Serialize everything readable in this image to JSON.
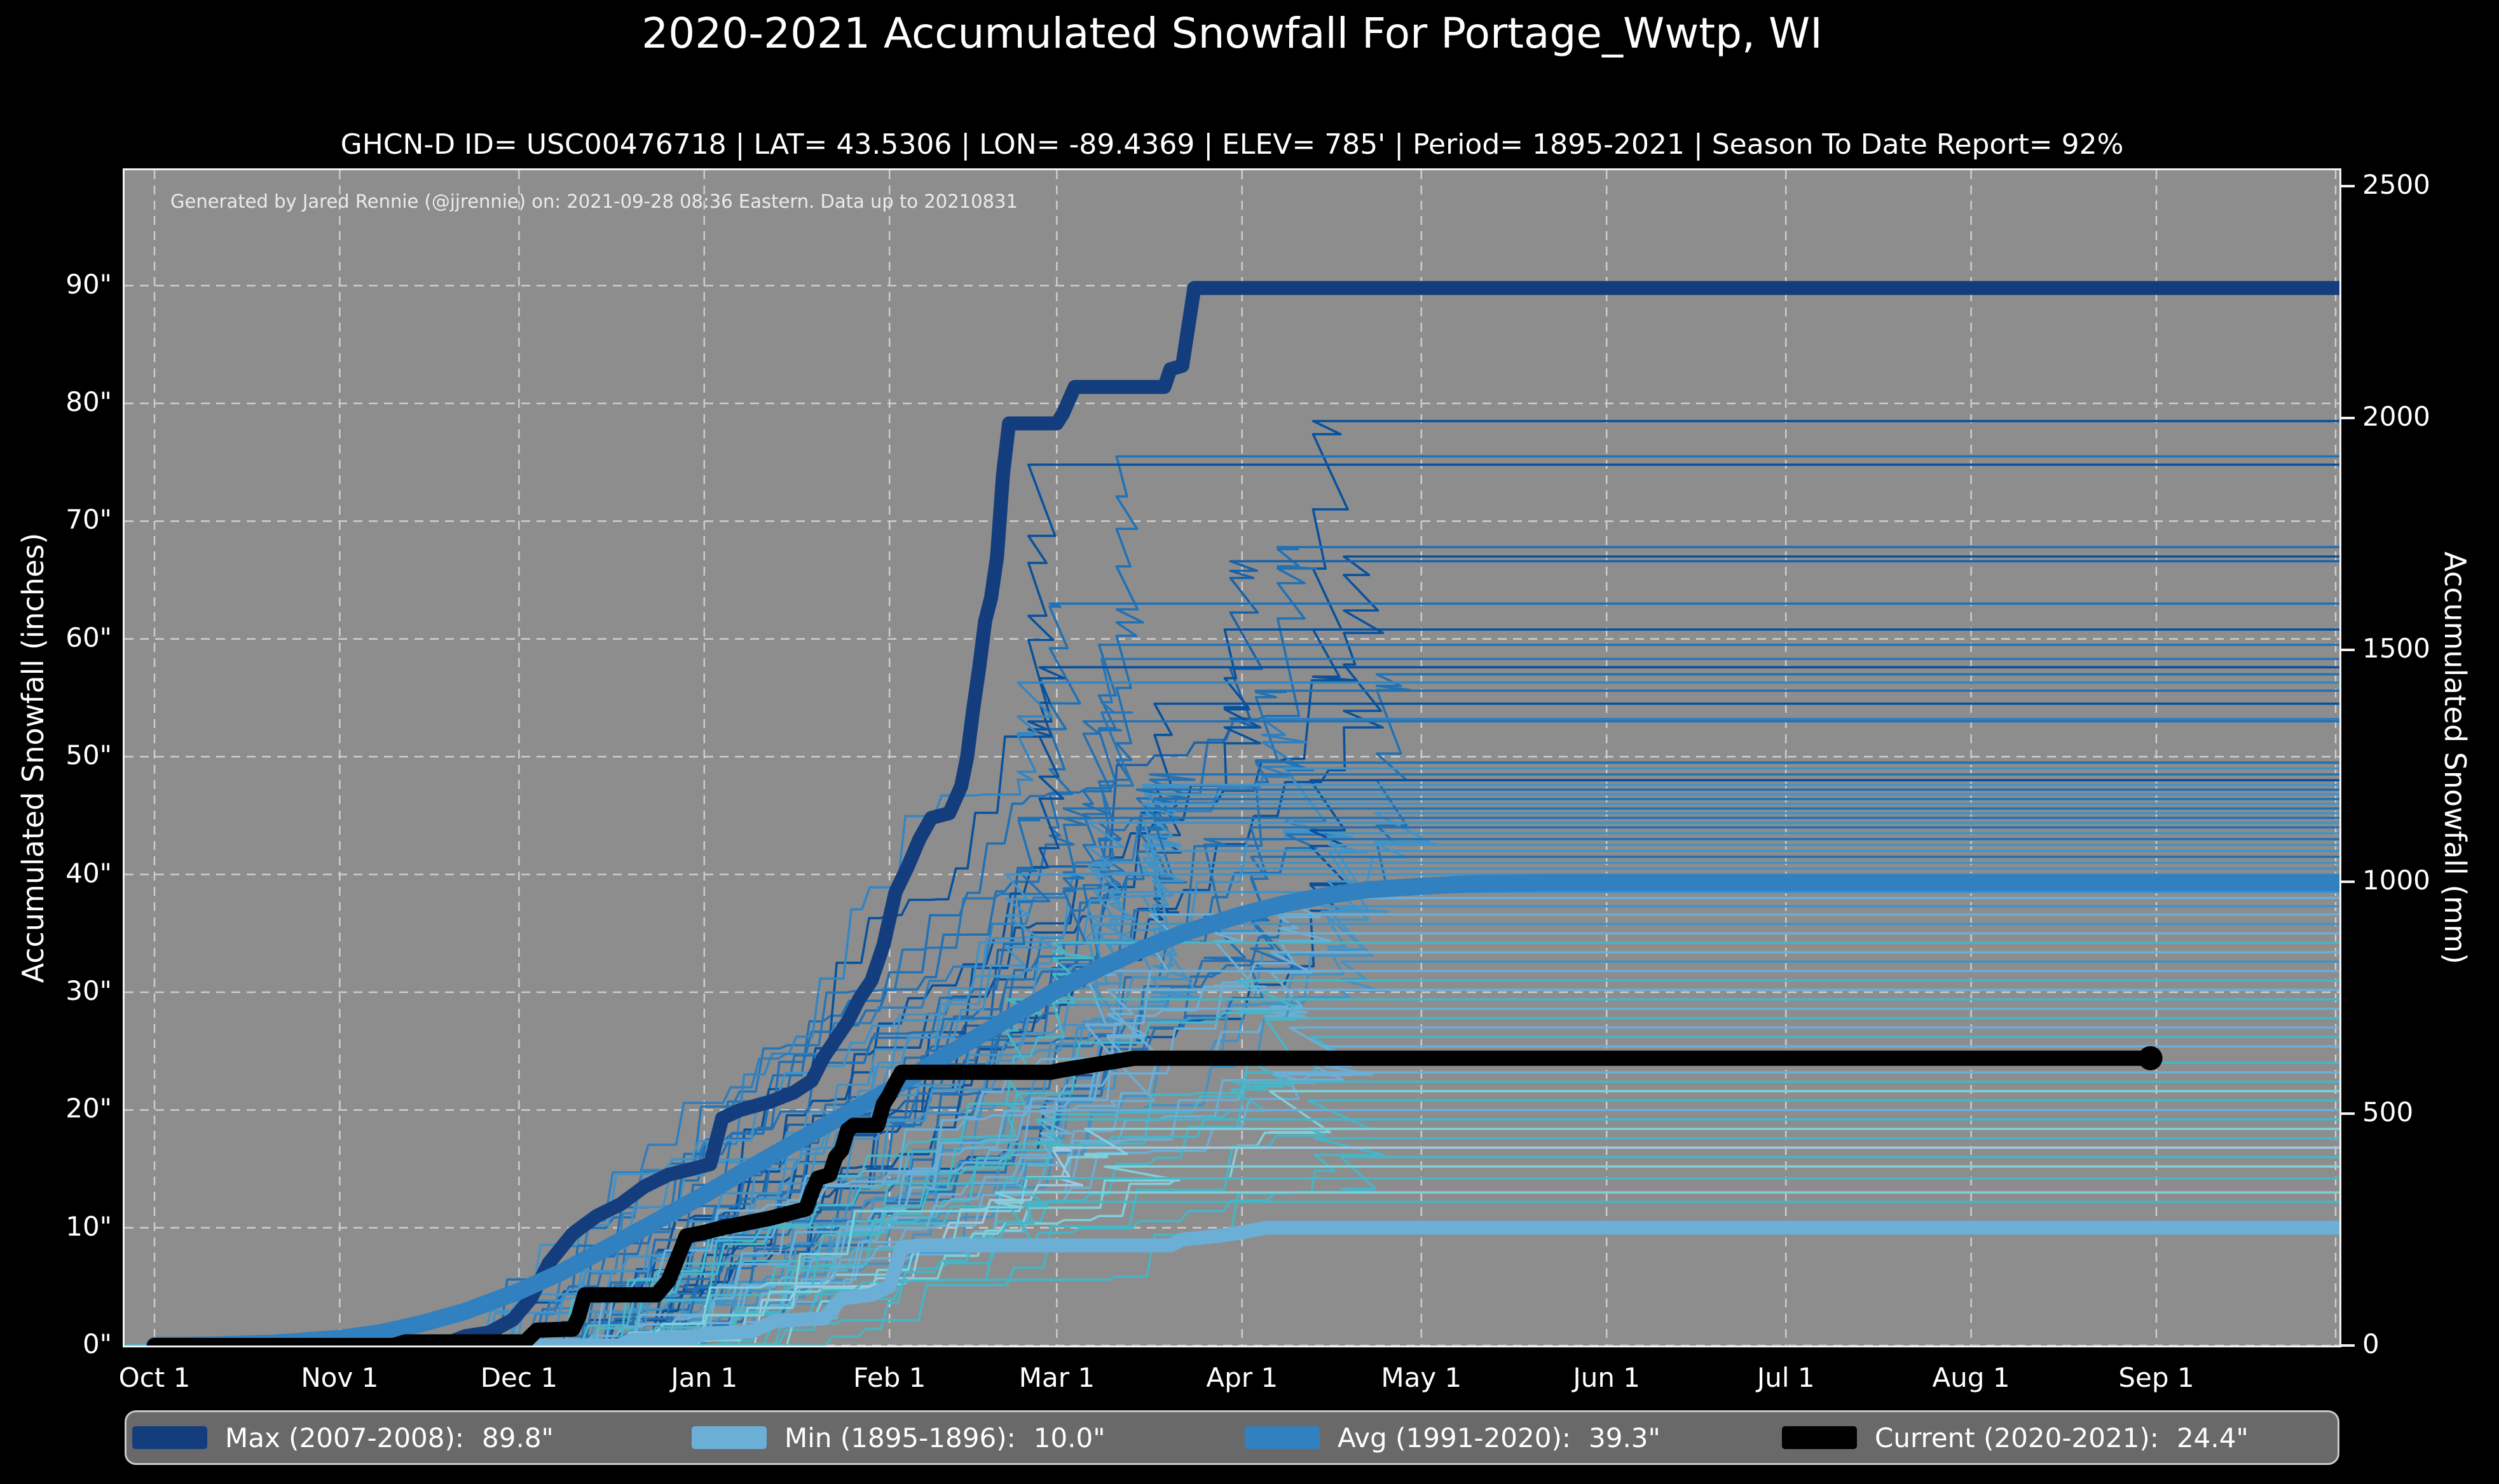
{
  "header": {
    "title": "2020-2021 Accumulated Snowfall For Portage_Wwtp, WI",
    "subtitle": "GHCN-D ID= USC00476718 | LAT= 43.5306 | LON= -89.4369 | ELEV= 785' | Period= 1895-2021 | Season To Date Report= 92%"
  },
  "annotation": {
    "text": "Generated by Jared Rennie (@jjrennie) on: 2021-09-28 08:36 Eastern. Data up to 20210831"
  },
  "axes": {
    "left_label": "Accumulated Snowfall (inches)",
    "right_label": "Accumulated Snowfall (mm)"
  },
  "colors": {
    "figure_bg": "#000000",
    "plot_bg": "#8d8d8d",
    "grid": "#cdcdcd",
    "spine": "#f2f2f2",
    "text": "#ffffff",
    "max_line": "#133d7c",
    "min_line": "#6baed6",
    "avg_line": "#3180bf",
    "current_line": "#000000"
  },
  "legend": {
    "entries": [
      {
        "label": "Max (2007-2008):",
        "value": "89.8\"",
        "color": "#133d7c"
      },
      {
        "label": "Min (1895-1896):",
        "value": "10.0\"",
        "color": "#6baed6"
      },
      {
        "label": "Avg (1991-2020):",
        "value": "39.3\"",
        "color": "#3180bf"
      },
      {
        "label": "Current (2020-2021):",
        "value": "24.4\"",
        "color": "#000000"
      }
    ]
  },
  "chart_data": {
    "type": "line",
    "title": "2020-2021 Accumulated Snowfall For Portage_Wwtp, WI",
    "x_axis": {
      "tick_labels": [
        "Oct 1",
        "Nov 1",
        "Dec 1",
        "Jan 1",
        "Feb 1",
        "Mar 1",
        "Apr 1",
        "May 1",
        "Jun 1",
        "Jul 1",
        "Aug 1",
        "Sep 1"
      ],
      "tick_days": [
        0,
        31,
        61,
        92,
        123,
        151,
        182,
        212,
        243,
        273,
        304,
        335
      ],
      "domain_days": [
        -5,
        365.6
      ],
      "extra_gridline_day": 365
    },
    "y_left": {
      "label": "Accumulated Snowfall (inches)",
      "tick_values": [
        0,
        10,
        20,
        30,
        40,
        50,
        60,
        70,
        80,
        90
      ],
      "tick_suffix": "\"",
      "ylim": [
        0,
        99.8
      ]
    },
    "y_right": {
      "label": "Accumulated Snowfall (mm)",
      "tick_values": [
        0,
        500,
        1000,
        1500,
        2000,
        2500
      ],
      "mm_per_inch": 25.4
    },
    "grid": {
      "dashed": true,
      "color": "#cdcdcd"
    },
    "series": [
      {
        "name": "Max (2007-2008)",
        "final_label": "89.8\"",
        "color": "#133d7c",
        "width": 22,
        "points": [
          [
            0,
            0
          ],
          [
            48,
            0
          ],
          [
            52,
            0.8
          ],
          [
            56,
            1.1
          ],
          [
            60,
            2.2
          ],
          [
            63,
            4
          ],
          [
            66,
            7
          ],
          [
            70,
            9.5
          ],
          [
            74,
            11
          ],
          [
            78,
            12
          ],
          [
            82,
            13.5
          ],
          [
            86,
            14.5
          ],
          [
            90,
            15
          ],
          [
            93,
            15.4
          ],
          [
            95,
            19.3
          ],
          [
            98,
            20
          ],
          [
            103,
            20.7
          ],
          [
            107,
            21.5
          ],
          [
            110,
            22.5
          ],
          [
            112,
            24.5
          ],
          [
            114,
            26
          ],
          [
            116,
            27.5
          ],
          [
            118,
            29.5
          ],
          [
            120,
            31
          ],
          [
            122,
            34
          ],
          [
            124,
            38.5
          ],
          [
            126,
            40.6
          ],
          [
            128,
            43
          ],
          [
            130,
            44.8
          ],
          [
            133,
            45.2
          ],
          [
            135,
            47.5
          ],
          [
            136,
            50
          ],
          [
            137,
            54
          ],
          [
            138,
            57.5
          ],
          [
            139,
            61.5
          ],
          [
            140,
            63.5
          ],
          [
            141,
            67
          ],
          [
            142,
            74
          ],
          [
            143,
            78.3
          ],
          [
            151,
            78.3
          ],
          [
            152,
            79.1
          ],
          [
            154,
            81.4
          ],
          [
            169,
            81.4
          ],
          [
            170,
            82.9
          ],
          [
            172,
            83.2
          ],
          [
            173,
            86.5
          ],
          [
            174,
            89.8
          ],
          [
            365.6,
            89.8
          ]
        ]
      },
      {
        "name": "Min (1895-1896)",
        "final_label": "10.0\"",
        "color": "#6baed6",
        "width": 22,
        "points": [
          [
            0,
            0
          ],
          [
            78,
            0
          ],
          [
            80,
            0.5
          ],
          [
            90,
            0.6
          ],
          [
            92,
            1
          ],
          [
            100,
            1.2
          ],
          [
            104,
            2.1
          ],
          [
            112,
            2.3
          ],
          [
            115,
            4
          ],
          [
            120,
            4.3
          ],
          [
            123,
            5
          ],
          [
            125,
            8.3
          ],
          [
            128,
            8.5
          ],
          [
            170,
            8.5
          ],
          [
            172,
            9
          ],
          [
            178,
            9.3
          ],
          [
            182,
            9.6
          ],
          [
            186,
            10
          ],
          [
            365.6,
            10
          ]
        ]
      },
      {
        "name": "Avg (1991-2020)",
        "final_label": "39.3\"",
        "color": "#3180bf",
        "width": 27,
        "points": [
          [
            0,
            0
          ],
          [
            10,
            0.05
          ],
          [
            20,
            0.2
          ],
          [
            31,
            0.6
          ],
          [
            38,
            1.1
          ],
          [
            45,
            1.9
          ],
          [
            52,
            2.9
          ],
          [
            61,
            4.6
          ],
          [
            68,
            6.2
          ],
          [
            75,
            8.1
          ],
          [
            82,
            10
          ],
          [
            92,
            12.8
          ],
          [
            99,
            14.9
          ],
          [
            106,
            16.9
          ],
          [
            113,
            18.9
          ],
          [
            123,
            21.7
          ],
          [
            130,
            23.9
          ],
          [
            137,
            26
          ],
          [
            144,
            28.1
          ],
          [
            151,
            30.2
          ],
          [
            158,
            32
          ],
          [
            165,
            33.6
          ],
          [
            172,
            35
          ],
          [
            182,
            36.6
          ],
          [
            189,
            37.5
          ],
          [
            196,
            38.2
          ],
          [
            203,
            38.7
          ],
          [
            212,
            39
          ],
          [
            220,
            39.2
          ],
          [
            232,
            39.3
          ],
          [
            365.6,
            39.3
          ]
        ]
      },
      {
        "name": "Current (2020-2021)",
        "final_label": "24.4\"",
        "color": "#000000",
        "width": 24,
        "end_dot_day": 334,
        "end_dot_radius": 19,
        "points": [
          [
            0,
            0
          ],
          [
            40,
            0
          ],
          [
            42,
            0.3
          ],
          [
            62,
            0.3
          ],
          [
            64,
            1.3
          ],
          [
            70,
            1.4
          ],
          [
            71,
            2.5
          ],
          [
            72,
            4.3
          ],
          [
            84,
            4.3
          ],
          [
            86,
            5.5
          ],
          [
            88,
            8
          ],
          [
            89,
            9.3
          ],
          [
            92,
            9.6
          ],
          [
            95,
            10
          ],
          [
            99,
            10.4
          ],
          [
            103,
            10.8
          ],
          [
            106,
            11.2
          ],
          [
            109,
            11.6
          ],
          [
            110,
            13
          ],
          [
            111,
            14.2
          ],
          [
            113,
            14.5
          ],
          [
            114,
            16
          ],
          [
            115,
            16.6
          ],
          [
            116,
            18.3
          ],
          [
            117,
            18.7
          ],
          [
            121,
            18.7
          ],
          [
            122,
            20.5
          ],
          [
            123,
            21.3
          ],
          [
            124,
            22.3
          ],
          [
            125,
            23.2
          ],
          [
            150,
            23.2
          ],
          [
            152,
            23.4
          ],
          [
            164,
            24.4
          ],
          [
            334,
            24.4
          ]
        ]
      }
    ],
    "historical_seasons_final_color": [
      [
        78.5,
        "#08519c"
      ],
      [
        75.5,
        "#2171b5"
      ],
      [
        74.8,
        "#08519c"
      ],
      [
        67.8,
        "#2171b5"
      ],
      [
        67.0,
        "#08519c"
      ],
      [
        66.6,
        "#1a62a8"
      ],
      [
        63.0,
        "#2171b5"
      ],
      [
        60.8,
        "#08519c"
      ],
      [
        59.5,
        "#2171b5"
      ],
      [
        58.3,
        "#2776b8"
      ],
      [
        57.6,
        "#08519c"
      ],
      [
        57.0,
        "#2171b5"
      ],
      [
        56.3,
        "#3585c1"
      ],
      [
        55.6,
        "#2171b5"
      ],
      [
        54.5,
        "#08519c"
      ],
      [
        53.2,
        "#2f7ebf"
      ],
      [
        53.0,
        "#2171b5"
      ],
      [
        49.5,
        "#2171b5"
      ],
      [
        49.0,
        "#4292c6"
      ],
      [
        48.5,
        "#2171b5"
      ],
      [
        48.0,
        "#08519c"
      ],
      [
        47.6,
        "#4292c6"
      ],
      [
        47.2,
        "#2171b5"
      ],
      [
        46.8,
        "#4292c6"
      ],
      [
        46.4,
        "#2171b5"
      ],
      [
        46.0,
        "#4292c6"
      ],
      [
        45.6,
        "#2171b5"
      ],
      [
        45.2,
        "#4292c6"
      ],
      [
        44.8,
        "#2171b5"
      ],
      [
        44.4,
        "#4292c6"
      ],
      [
        44.0,
        "#2171b5"
      ],
      [
        43.5,
        "#4292c6"
      ],
      [
        43.0,
        "#2171b5"
      ],
      [
        42.5,
        "#4292c6"
      ],
      [
        42.0,
        "#4292c6"
      ],
      [
        41.5,
        "#2171b5"
      ],
      [
        41.0,
        "#4292c6"
      ],
      [
        40.5,
        "#4292c6"
      ],
      [
        40.0,
        "#4292c6"
      ],
      [
        38.5,
        "#4292c6"
      ],
      [
        38.0,
        "#6baed6"
      ],
      [
        37.3,
        "#4292c6"
      ],
      [
        36.6,
        "#6baed6"
      ],
      [
        35.8,
        "#4292c6"
      ],
      [
        35.0,
        "#6baed6"
      ],
      [
        34.2,
        "#45b6c8"
      ],
      [
        33.4,
        "#6baed6"
      ],
      [
        32.6,
        "#4292c6"
      ],
      [
        31.8,
        "#6baed6"
      ],
      [
        31.0,
        "#45b6c8"
      ],
      [
        30.2,
        "#6baed6"
      ],
      [
        29.4,
        "#45b6c8"
      ],
      [
        28.6,
        "#6baed6"
      ],
      [
        27.8,
        "#45b6c8"
      ],
      [
        27.0,
        "#6baed6"
      ],
      [
        26.2,
        "#45b6c8"
      ],
      [
        25.4,
        "#6baed6"
      ],
      [
        24.0,
        "#45b6c8"
      ],
      [
        23.2,
        "#6baed6"
      ],
      [
        22.4,
        "#45b6c8"
      ],
      [
        21.6,
        "#7fd0da"
      ],
      [
        20.8,
        "#45b6c8"
      ],
      [
        20.0,
        "#6baed6"
      ],
      [
        19.2,
        "#45b6c8"
      ],
      [
        18.4,
        "#7fd0da"
      ],
      [
        17.6,
        "#45b6c8"
      ],
      [
        16.8,
        "#9ecae1"
      ],
      [
        16.0,
        "#45b6c8"
      ],
      [
        15.2,
        "#7fd0da"
      ],
      [
        14.2,
        "#45b6c8"
      ],
      [
        13.0,
        "#7fd0da"
      ],
      [
        12.2,
        "#45b6c8"
      ]
    ]
  }
}
